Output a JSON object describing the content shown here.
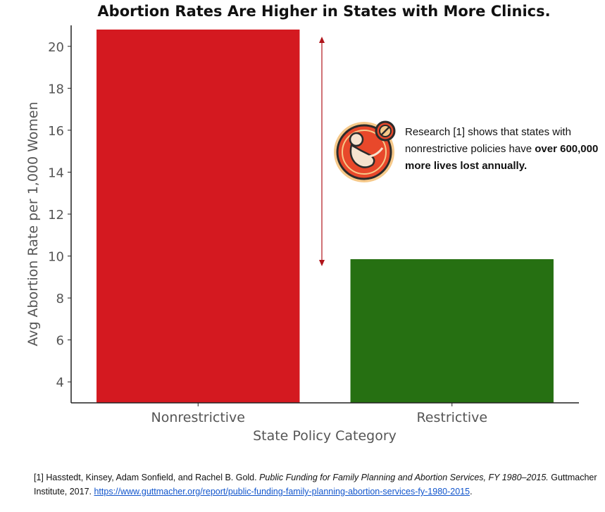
{
  "chart_data": {
    "type": "bar",
    "title": "Abortion Rates Are Higher in States with More Clinics.",
    "xlabel": "State Policy Category",
    "ylabel": "Avg Abortion Rate per 1,000 Women",
    "categories": [
      "Nonrestrictive",
      "Restrictive"
    ],
    "values": [
      20.8,
      9.85
    ],
    "colors": [
      "#d41920",
      "#267012"
    ],
    "ylim": [
      3,
      21
    ],
    "yticks": [
      4,
      6,
      8,
      10,
      12,
      14,
      16,
      18,
      20
    ],
    "grid": false,
    "arrow_color": "#b0151b"
  },
  "callout": {
    "icon": "fetus-prohibited-icon",
    "text_plain": "Research [1] shows that states with nonrestrictive policies have ",
    "text_bold": "over 600,000 more lives lost annually."
  },
  "footnote": {
    "prefix": "[1] Hasstedt, Kinsey, Adam Sonfield, and Rachel B. Gold. ",
    "title": "Public Funding for Family Planning and Abortion Services, FY 1980–2015.",
    "publisher": " Guttmacher Institute, 2017. ",
    "url": "https://www.guttmacher.org/report/public-funding-family-planning-abortion-services-fy-1980-2015",
    "end": "."
  }
}
